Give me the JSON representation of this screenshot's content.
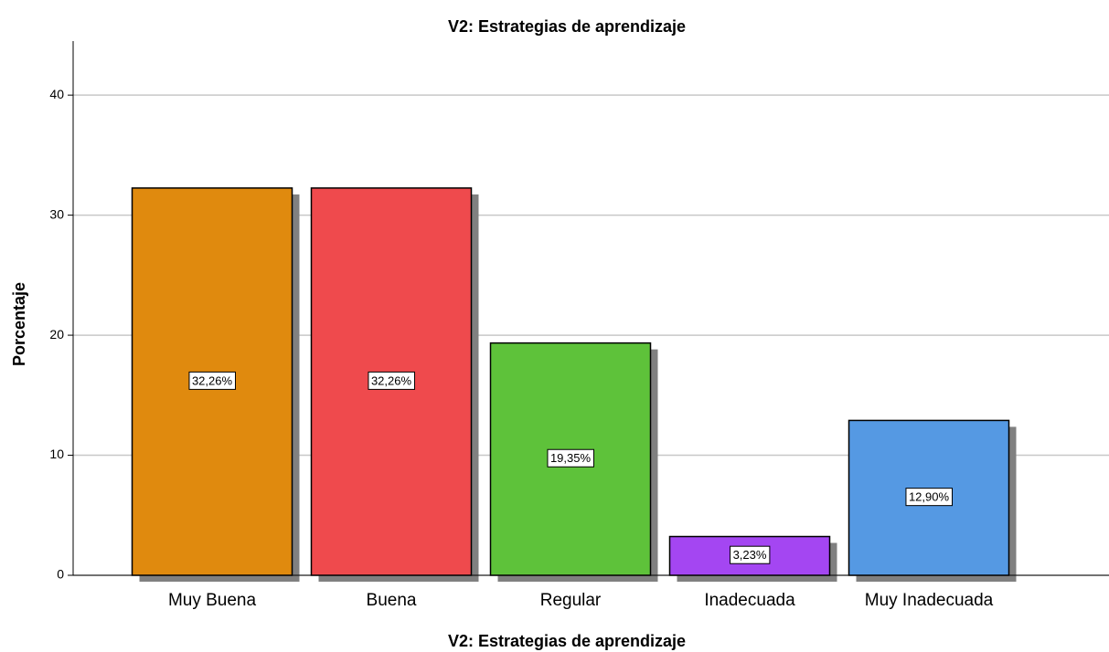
{
  "chart_data": {
    "type": "bar",
    "title": "V2: Estrategias de aprendizaje",
    "x_label": "V2: Estrategias de aprendizaje",
    "y_label": "Porcentaje",
    "categories": [
      "Muy Buena",
      "Buena",
      "Regular",
      "Inadecuada",
      "Muy Inadecuada"
    ],
    "values": [
      32.26,
      32.26,
      19.35,
      3.23,
      12.9
    ],
    "value_labels": [
      "32,26%",
      "32,26%",
      "19,35%",
      "3,23%",
      "12,90%"
    ],
    "colors": [
      "#e08a0e",
      "#ef4a4d",
      "#5ec23a",
      "#a446f2",
      "#5599e3"
    ],
    "ylim": [
      0,
      44.5
    ],
    "yticks": [
      0,
      10,
      20,
      30,
      40
    ],
    "grid": true
  }
}
